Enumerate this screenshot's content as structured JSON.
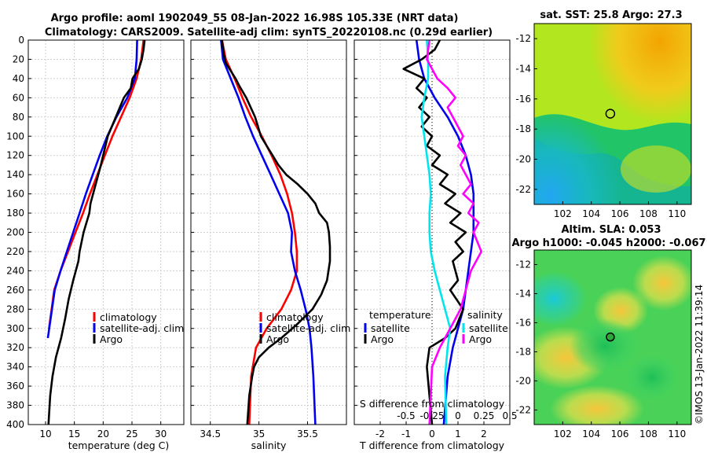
{
  "header": {
    "title_line1": "Argo profile: aoml 1902049_55 08-Jan-2022 16.98S 105.33E (NRT data)",
    "title_line2": "Climatology: CARS2009. Satellite-adj clim: synTS_20220108.nc (0.29d earlier)"
  },
  "chart_data": [
    {
      "id": "temperature-profile",
      "type": "line",
      "xlabel": "temperature (deg C)",
      "ylabel": "",
      "xlim": [
        7,
        34
      ],
      "ylim": [
        0,
        400
      ],
      "y_inverted": true,
      "xticks": [
        10,
        15,
        20,
        25,
        30
      ],
      "yticks": [
        0,
        20,
        40,
        60,
        80,
        100,
        120,
        140,
        160,
        180,
        200,
        220,
        240,
        260,
        280,
        300,
        320,
        340,
        360,
        380,
        400
      ],
      "grid": true,
      "legend": [
        "climatology",
        "satellite-adj. clim",
        "Argo"
      ],
      "legend_position": "lower-right",
      "series": [
        {
          "name": "climatology",
          "color": "#ff0000",
          "x": [
            27.0,
            26.6,
            25.8,
            24.6,
            23.1,
            21.6,
            20.3,
            19.0,
            17.7,
            16.5,
            15.2,
            13.9,
            12.6,
            11.5,
            10.6
          ],
          "y": [
            0,
            20,
            40,
            60,
            80,
            100,
            120,
            140,
            160,
            180,
            200,
            220,
            240,
            260,
            300
          ]
        },
        {
          "name": "satellite-adj. clim",
          "color": "#0000ee",
          "x": [
            25.9,
            25.8,
            25.5,
            24.2,
            22.3,
            20.7,
            19.4,
            18.2,
            17.0,
            15.9,
            14.8,
            13.7,
            12.6,
            11.6,
            10.4
          ],
          "y": [
            0,
            20,
            40,
            60,
            80,
            100,
            120,
            140,
            160,
            180,
            200,
            220,
            240,
            260,
            310
          ]
        },
        {
          "name": "Argo",
          "color": "#000000",
          "x": [
            27.2,
            27.0,
            26.7,
            26.2,
            25.1,
            24.8,
            23.6,
            22.2,
            20.8,
            20.0,
            19.6,
            18.7,
            17.8,
            17.6,
            16.6,
            15.9,
            15.7,
            14.8,
            14.0,
            13.4,
            12.7,
            11.8,
            11.2,
            10.8,
            10.5
          ],
          "y": [
            0,
            10,
            20,
            30,
            40,
            50,
            60,
            80,
            100,
            120,
            130,
            150,
            170,
            180,
            200,
            220,
            230,
            250,
            270,
            290,
            310,
            330,
            350,
            370,
            400
          ]
        }
      ]
    },
    {
      "id": "salinity-profile",
      "type": "line",
      "xlabel": "salinity",
      "ylabel": "",
      "xlim": [
        34.3,
        35.9
      ],
      "ylim": [
        0,
        400
      ],
      "y_inverted": true,
      "xticks": [
        34.5,
        35,
        35.5
      ],
      "xtick_labels": [
        "34.5",
        "35",
        "35.5"
      ],
      "grid": true,
      "legend": [
        "climatology",
        "satellite-adj. clim",
        "Argo"
      ],
      "legend_position": "lower-right",
      "series": [
        {
          "name": "climatology",
          "color": "#ff0000",
          "x": [
            34.62,
            34.66,
            34.75,
            34.83,
            34.92,
            35.03,
            35.13,
            35.22,
            35.29,
            35.34,
            35.37,
            35.39,
            35.39,
            35.33,
            35.23,
            35.08,
            34.97,
            34.92,
            34.9
          ],
          "y": [
            0,
            20,
            40,
            60,
            80,
            100,
            120,
            140,
            160,
            180,
            200,
            220,
            240,
            260,
            280,
            300,
            320,
            350,
            400
          ]
        },
        {
          "name": "satellite-adj. clim",
          "color": "#0000ee",
          "x": [
            34.61,
            34.63,
            34.71,
            34.79,
            34.86,
            34.94,
            35.03,
            35.12,
            35.21,
            35.3,
            35.34,
            35.33,
            35.37,
            35.43,
            35.48,
            35.52,
            35.54,
            35.56,
            35.58
          ],
          "y": [
            0,
            20,
            40,
            60,
            80,
            100,
            120,
            140,
            160,
            180,
            200,
            220,
            240,
            260,
            280,
            300,
            320,
            350,
            400
          ]
        },
        {
          "name": "Argo",
          "color": "#000000",
          "x": [
            34.62,
            34.63,
            34.64,
            34.66,
            34.71,
            34.76,
            34.8,
            34.87,
            34.96,
            35.02,
            35.08,
            35.14,
            35.2,
            35.28,
            35.4,
            35.5,
            35.58,
            35.62,
            35.7,
            35.72,
            35.73,
            35.73,
            35.7,
            35.64,
            35.55,
            35.4,
            35.23,
            35.1,
            35.0,
            34.95,
            34.93,
            34.9,
            34.88
          ],
          "y": [
            0,
            8,
            16,
            24,
            32,
            40,
            48,
            60,
            80,
            100,
            110,
            120,
            130,
            140,
            150,
            160,
            170,
            180,
            190,
            200,
            215,
            230,
            250,
            265,
            280,
            295,
            310,
            320,
            330,
            340,
            350,
            370,
            400
          ]
        }
      ]
    },
    {
      "id": "difference-profile",
      "type": "line",
      "xlabel": "T difference from climatology",
      "top_label": "S difference from climatology",
      "xlim": [
        -3,
        3
      ],
      "ylim": [
        0,
        400
      ],
      "y_inverted": true,
      "xticks": [
        -2,
        -1,
        0,
        1,
        2
      ],
      "top_ticks": [
        "-0.5",
        "-0.25",
        "0",
        "0.25",
        "0.5"
      ],
      "grid": true,
      "zero_line": true,
      "legend_left_title": "temperature",
      "legend_left": [
        "satellite",
        "Argo"
      ],
      "legend_right_title": "salinity",
      "legend_right": [
        "satellite",
        "Argo"
      ],
      "series": [
        {
          "name": "temperature satellite",
          "color": "#0000ee",
          "x": [
            -0.6,
            -0.5,
            -0.3,
            0.1,
            0.6,
            1.0,
            1.3,
            1.5,
            1.6,
            1.6,
            1.6,
            1.5,
            1.4,
            1.3,
            1.2,
            1.0,
            0.8,
            0.6,
            0.45
          ],
          "y": [
            0,
            20,
            40,
            60,
            80,
            100,
            120,
            140,
            160,
            180,
            200,
            220,
            240,
            260,
            280,
            300,
            320,
            350,
            400
          ]
        },
        {
          "name": "temperature Argo",
          "color": "#000000",
          "x": [
            0.3,
            0.1,
            -0.4,
            -1.1,
            -0.3,
            -0.6,
            -0.2,
            -0.5,
            -0.1,
            -0.4,
            0.0,
            -0.2,
            0.3,
            0.0,
            0.6,
            0.3,
            0.9,
            0.5,
            1.1,
            0.7,
            1.3,
            0.9,
            1.2,
            0.8,
            1.0,
            0.7,
            1.2,
            0.9,
            0.5,
            -0.1,
            -0.2,
            -0.1,
            0.0
          ],
          "y": [
            0,
            10,
            20,
            30,
            40,
            50,
            60,
            70,
            80,
            90,
            100,
            110,
            120,
            130,
            140,
            150,
            160,
            170,
            180,
            190,
            200,
            210,
            220,
            230,
            250,
            260,
            280,
            300,
            310,
            320,
            340,
            370,
            400
          ]
        },
        {
          "name": "salinity satellite",
          "color": "#00e5ee",
          "x": [
            -0.2,
            -0.15,
            -0.15,
            -0.3,
            -0.4,
            -0.3,
            -0.2,
            -0.1,
            -0.05,
            -0.1,
            -0.1,
            -0.05,
            0.1,
            0.3,
            0.5,
            0.7,
            0.6,
            0.5,
            0.55
          ],
          "y": [
            0,
            20,
            40,
            60,
            80,
            100,
            120,
            140,
            160,
            180,
            200,
            220,
            240,
            260,
            280,
            300,
            320,
            350,
            400
          ]
        },
        {
          "name": "salinity Argo",
          "color": "#ff00ff",
          "x": [
            -0.1,
            -0.2,
            0.2,
            0.6,
            0.9,
            0.6,
            0.8,
            1.2,
            1.0,
            1.3,
            1.1,
            1.5,
            1.2,
            1.6,
            1.4,
            1.8,
            1.6,
            1.9,
            1.5,
            1.3,
            1.1,
            0.7,
            0.3,
            0.0,
            -0.1
          ],
          "y": [
            0,
            20,
            40,
            50,
            60,
            70,
            80,
            100,
            110,
            120,
            130,
            150,
            160,
            170,
            180,
            190,
            200,
            220,
            240,
            260,
            280,
            300,
            320,
            340,
            400
          ]
        }
      ]
    },
    {
      "id": "sst-map",
      "type": "heatmap",
      "title": "sat. SST: 25.8 Argo: 27.3",
      "xlim": [
        100,
        111
      ],
      "ylim": [
        -23,
        -11
      ],
      "xticks": [
        102,
        104,
        106,
        108,
        110
      ],
      "yticks": [
        -12,
        -14,
        -16,
        -18,
        -20,
        -22
      ],
      "ytick_labels": [
        "-12",
        "-14",
        "-16",
        "-18",
        "-20",
        "-22"
      ],
      "marker": {
        "lon": 105.33,
        "lat": -16.98
      },
      "field": "SST: warm (orange) in the north-east, green-yellow centre, cool (cyan-blue) in the south-west"
    },
    {
      "id": "sla-map",
      "type": "heatmap",
      "title_line1": "Altim. SLA: 0.053",
      "title_line2": "Argo h1000: -0.045 h2000: -0.067",
      "xlim": [
        100,
        111
      ],
      "ylim": [
        -23,
        -11
      ],
      "xticks": [
        102,
        104,
        106,
        108,
        110
      ],
      "yticks": [
        -12,
        -14,
        -16,
        -18,
        -20,
        -22
      ],
      "ytick_labels": [
        "-12",
        "-14",
        "-16",
        "-18",
        "-20",
        "-22"
      ],
      "marker": {
        "lon": 105.33,
        "lat": -16.98
      },
      "field": "Sea level anomaly: mostly green with yellow-orange highs and a cyan low in the north-west"
    }
  ],
  "legend_labels": {
    "climatology": "climatology",
    "satellite_adj": "satellite-adj. clim",
    "argo": "Argo",
    "temperature": "temperature",
    "salinity": "salinity",
    "satellite": "satellite"
  },
  "colors": {
    "climatology": "#ff0000",
    "satellite": "#0000ee",
    "argo": "#000000",
    "salinity_satellite": "#00e5ee",
    "salinity_argo": "#ff00ff"
  },
  "footer": {
    "stamp": "©IMOS 13-Jan-2022 11:39:14"
  }
}
